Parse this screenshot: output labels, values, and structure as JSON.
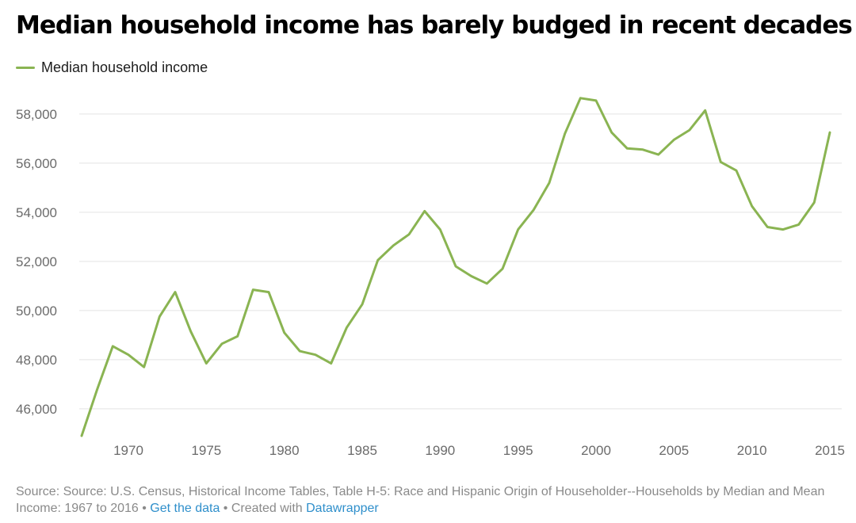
{
  "title": "Median household income has barely budged in recent decades",
  "legend": {
    "label": "Median household income",
    "color": "#8ab452"
  },
  "footer": {
    "source": "Source: Source: U.S. Census, Historical Income Tables, Table H-5: Race and Hispanic Origin of Householder--Households by Median and Mean Income: 1967 to 2016",
    "separator": " • ",
    "get_data_label": "Get the data",
    "created_with": "Created with",
    "datawrapper_label": "Datawrapper",
    "link_color": "#2f8fcb"
  },
  "chart_data": {
    "type": "line",
    "title": "Median household income has barely budged in recent decades",
    "xlabel": "",
    "ylabel": "",
    "xlim": [
      1967,
      2015
    ],
    "ylim": [
      44900,
      58900
    ],
    "x_ticks": [
      1970,
      1975,
      1980,
      1985,
      1990,
      1995,
      2000,
      2005,
      2010,
      2015
    ],
    "x_tick_labels": [
      "1970",
      "1975",
      "1980",
      "1985",
      "1990",
      "1995",
      "2000",
      "2005",
      "2010",
      "2015"
    ],
    "y_ticks": [
      46000,
      48000,
      50000,
      52000,
      54000,
      56000,
      58000
    ],
    "y_tick_labels": [
      "46,000",
      "48,000",
      "50,000",
      "52,000",
      "54,000",
      "56,000",
      "58,000"
    ],
    "grid": true,
    "legend_position": "top-left",
    "series": [
      {
        "name": "Median household income",
        "color": "#8ab452",
        "x": [
          1967,
          1968,
          1969,
          1970,
          1971,
          1972,
          1973,
          1974,
          1975,
          1976,
          1977,
          1978,
          1979,
          1980,
          1981,
          1982,
          1983,
          1984,
          1985,
          1986,
          1987,
          1988,
          1989,
          1990,
          1991,
          1992,
          1993,
          1994,
          1995,
          1996,
          1997,
          1998,
          1999,
          2000,
          2001,
          2002,
          2003,
          2004,
          2005,
          2006,
          2007,
          2008,
          2009,
          2010,
          2011,
          2012,
          2013,
          2014,
          2015
        ],
        "values": [
          44900,
          46800,
          48550,
          48200,
          47700,
          49750,
          50750,
          49150,
          47850,
          48650,
          48950,
          50850,
          50750,
          49100,
          48350,
          48200,
          47850,
          49300,
          50250,
          52050,
          52650,
          53100,
          54050,
          53300,
          51800,
          51400,
          51100,
          51700,
          53300,
          54100,
          55200,
          57200,
          58650,
          58550,
          57250,
          56600,
          56550,
          56350,
          56950,
          57350,
          58150,
          56050,
          55700,
          54250,
          53400,
          53300,
          53500,
          54400,
          57250
        ]
      }
    ]
  }
}
